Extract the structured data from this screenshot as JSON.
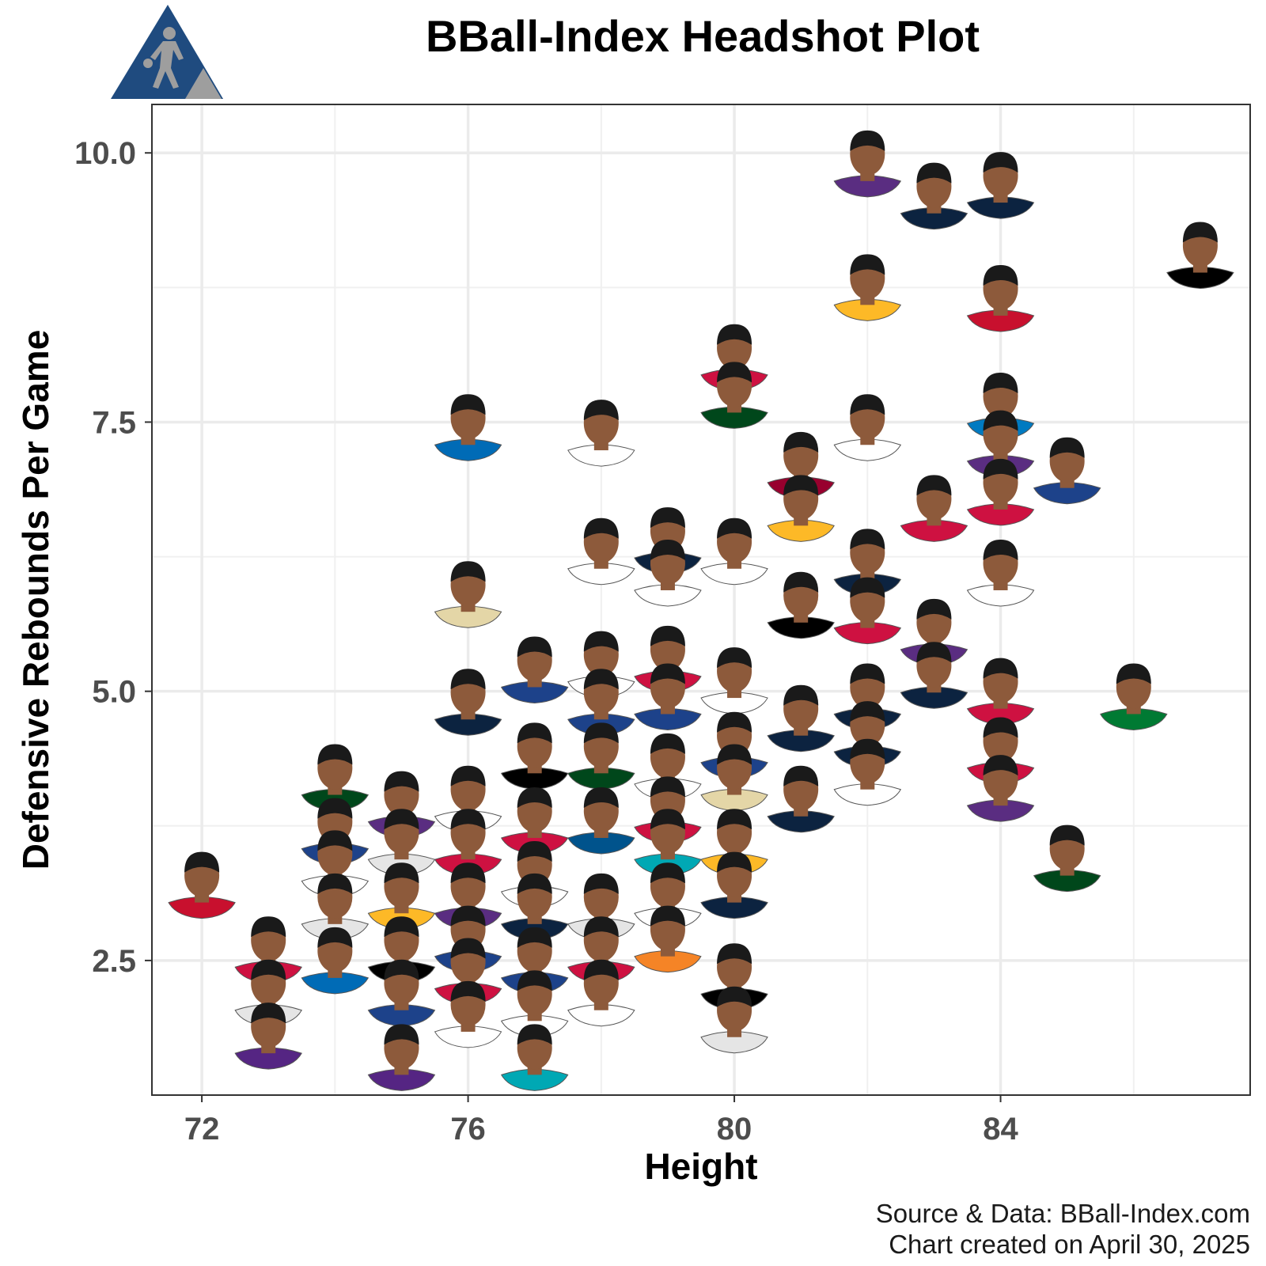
{
  "chart_data": {
    "type": "scatter",
    "title": "BBall-Index Headshot Plot",
    "xlabel": "Height",
    "ylabel": "Defensive Rebounds Per Game",
    "xlim": [
      71.25,
      87.75
    ],
    "ylim": [
      1.25,
      10.45
    ],
    "x_ticks": [
      72,
      76,
      80,
      84
    ],
    "x_tick_labels": [
      "72",
      "76",
      "80",
      "84"
    ],
    "y_ticks": [
      2.5,
      5.0,
      7.5,
      10.0
    ],
    "y_tick_labels": [
      "2.5",
      "5.0",
      "7.5",
      "10.0"
    ],
    "grid": true,
    "legend": "none",
    "marker": "player-headshot",
    "points": [
      {
        "x": 72,
        "y": 3.2,
        "jersey": "#c8102e"
      },
      {
        "x": 73,
        "y": 2.6,
        "jersey": "#ce1141"
      },
      {
        "x": 73,
        "y": 2.2,
        "jersey": "#e5e5e5"
      },
      {
        "x": 73,
        "y": 1.8,
        "jersey": "#552583"
      },
      {
        "x": 74,
        "y": 4.2,
        "jersey": "#00471b"
      },
      {
        "x": 74,
        "y": 3.7,
        "jersey": "#1d428a"
      },
      {
        "x": 74,
        "y": 3.4,
        "jersey": "#ffffff"
      },
      {
        "x": 74,
        "y": 3.0,
        "jersey": "#e5e5e5"
      },
      {
        "x": 74,
        "y": 2.5,
        "jersey": "#006bb6"
      },
      {
        "x": 75,
        "y": 3.95,
        "jersey": "#5a2d81"
      },
      {
        "x": 75,
        "y": 3.6,
        "jersey": "#e5e5e5"
      },
      {
        "x": 75,
        "y": 3.1,
        "jersey": "#fdb927"
      },
      {
        "x": 75,
        "y": 2.6,
        "jersey": "#000000"
      },
      {
        "x": 75,
        "y": 2.2,
        "jersey": "#1d428a"
      },
      {
        "x": 75,
        "y": 1.6,
        "jersey": "#552583"
      },
      {
        "x": 76,
        "y": 7.45,
        "jersey": "#006bb6"
      },
      {
        "x": 76,
        "y": 5.9,
        "jersey": "#e4d6a7"
      },
      {
        "x": 76,
        "y": 4.9,
        "jersey": "#0c2340"
      },
      {
        "x": 76,
        "y": 4.0,
        "jersey": "#ffffff"
      },
      {
        "x": 76,
        "y": 3.6,
        "jersey": "#ce1141"
      },
      {
        "x": 76,
        "y": 3.1,
        "jersey": "#5a2d81"
      },
      {
        "x": 76,
        "y": 2.7,
        "jersey": "#1d428a"
      },
      {
        "x": 76,
        "y": 2.4,
        "jersey": "#ce1141"
      },
      {
        "x": 76,
        "y": 2.0,
        "jersey": "#ffffff"
      },
      {
        "x": 77,
        "y": 5.2,
        "jersey": "#1d428a"
      },
      {
        "x": 77,
        "y": 4.4,
        "jersey": "#000000"
      },
      {
        "x": 77,
        "y": 3.8,
        "jersey": "#ce1141"
      },
      {
        "x": 77,
        "y": 3.3,
        "jersey": "#ffffff"
      },
      {
        "x": 77,
        "y": 3.0,
        "jersey": "#0c2340"
      },
      {
        "x": 77,
        "y": 2.5,
        "jersey": "#1d428a"
      },
      {
        "x": 77,
        "y": 2.1,
        "jersey": "#ffffff"
      },
      {
        "x": 77,
        "y": 1.6,
        "jersey": "#00a8b4"
      },
      {
        "x": 78,
        "y": 7.4,
        "jersey": "#ffffff"
      },
      {
        "x": 78,
        "y": 6.3,
        "jersey": "#ffffff"
      },
      {
        "x": 78,
        "y": 5.25,
        "jersey": "#ffffff"
      },
      {
        "x": 78,
        "y": 4.9,
        "jersey": "#1d428a"
      },
      {
        "x": 78,
        "y": 4.4,
        "jersey": "#00471b"
      },
      {
        "x": 78,
        "y": 3.8,
        "jersey": "#00538c"
      },
      {
        "x": 78,
        "y": 3.0,
        "jersey": "#e5e5e5"
      },
      {
        "x": 78,
        "y": 2.6,
        "jersey": "#ce1141"
      },
      {
        "x": 78,
        "y": 2.2,
        "jersey": "#ffffff"
      },
      {
        "x": 79,
        "y": 6.4,
        "jersey": "#0c2340"
      },
      {
        "x": 79,
        "y": 6.1,
        "jersey": "#ffffff"
      },
      {
        "x": 79,
        "y": 5.3,
        "jersey": "#ce1141"
      },
      {
        "x": 79,
        "y": 4.95,
        "jersey": "#1d428a"
      },
      {
        "x": 79,
        "y": 4.3,
        "jersey": "#ffffff"
      },
      {
        "x": 79,
        "y": 3.9,
        "jersey": "#ce1141"
      },
      {
        "x": 79,
        "y": 3.6,
        "jersey": "#00a8b4"
      },
      {
        "x": 79,
        "y": 3.1,
        "jersey": "#ffffff"
      },
      {
        "x": 79,
        "y": 2.7,
        "jersey": "#f58426"
      },
      {
        "x": 80,
        "y": 8.1,
        "jersey": "#ce1141"
      },
      {
        "x": 80,
        "y": 7.75,
        "jersey": "#00471b"
      },
      {
        "x": 80,
        "y": 6.3,
        "jersey": "#ffffff"
      },
      {
        "x": 80,
        "y": 5.1,
        "jersey": "#ffffff"
      },
      {
        "x": 80,
        "y": 4.5,
        "jersey": "#1d428a"
      },
      {
        "x": 80,
        "y": 4.2,
        "jersey": "#e4d6a7"
      },
      {
        "x": 80,
        "y": 3.6,
        "jersey": "#fdb927"
      },
      {
        "x": 80,
        "y": 3.2,
        "jersey": "#0c2340"
      },
      {
        "x": 80,
        "y": 2.35,
        "jersey": "#000000"
      },
      {
        "x": 80,
        "y": 1.95,
        "jersey": "#e5e5e5"
      },
      {
        "x": 81,
        "y": 7.1,
        "jersey": "#98002e"
      },
      {
        "x": 81,
        "y": 6.7,
        "jersey": "#fdb927"
      },
      {
        "x": 81,
        "y": 5.8,
        "jersey": "#000000"
      },
      {
        "x": 81,
        "y": 4.75,
        "jersey": "#0c2340"
      },
      {
        "x": 81,
        "y": 4.0,
        "jersey": "#0c2340"
      },
      {
        "x": 82,
        "y": 9.9,
        "jersey": "#5a2d81"
      },
      {
        "x": 82,
        "y": 8.75,
        "jersey": "#fdb927"
      },
      {
        "x": 82,
        "y": 7.45,
        "jersey": "#ffffff"
      },
      {
        "x": 82,
        "y": 6.2,
        "jersey": "#0c2340"
      },
      {
        "x": 82,
        "y": 5.75,
        "jersey": "#ce1141"
      },
      {
        "x": 82,
        "y": 4.95,
        "jersey": "#0c2340"
      },
      {
        "x": 82,
        "y": 4.6,
        "jersey": "#0c2340"
      },
      {
        "x": 82,
        "y": 4.25,
        "jersey": "#ffffff"
      },
      {
        "x": 83,
        "y": 9.6,
        "jersey": "#0c2340"
      },
      {
        "x": 83,
        "y": 6.7,
        "jersey": "#ce1141"
      },
      {
        "x": 83,
        "y": 5.55,
        "jersey": "#5a2d81"
      },
      {
        "x": 83,
        "y": 5.15,
        "jersey": "#0c2340"
      },
      {
        "x": 84,
        "y": 9.7,
        "jersey": "#0c2340"
      },
      {
        "x": 84,
        "y": 8.65,
        "jersey": "#c8102e"
      },
      {
        "x": 84,
        "y": 7.65,
        "jersey": "#007ac1"
      },
      {
        "x": 84,
        "y": 7.3,
        "jersey": "#5a2d81"
      },
      {
        "x": 84,
        "y": 6.85,
        "jersey": "#ce1141"
      },
      {
        "x": 84,
        "y": 6.1,
        "jersey": "#ffffff"
      },
      {
        "x": 84,
        "y": 5.0,
        "jersey": "#ce1141"
      },
      {
        "x": 84,
        "y": 4.45,
        "jersey": "#ce1141"
      },
      {
        "x": 84,
        "y": 4.1,
        "jersey": "#5a2d81"
      },
      {
        "x": 85,
        "y": 7.05,
        "jersey": "#1d428a"
      },
      {
        "x": 85,
        "y": 3.45,
        "jersey": "#00471b"
      },
      {
        "x": 86,
        "y": 4.95,
        "jersey": "#007a33"
      },
      {
        "x": 87,
        "y": 9.05,
        "jersey": "#000000"
      }
    ]
  },
  "logo": {
    "name": "BBall-Index logo",
    "primary_color": "#1f4b7f",
    "secondary_color": "#9e9e9e"
  },
  "caption": {
    "line1": "Source & Data: BBall-Index.com",
    "line2": "Chart created on April 30, 2025"
  },
  "colors": {
    "background": "#ffffff",
    "grid": "#ebebeb",
    "panel_border": "#333333",
    "tick_label": "#4d4d4d",
    "skin_tone": "#8d5a3b"
  }
}
